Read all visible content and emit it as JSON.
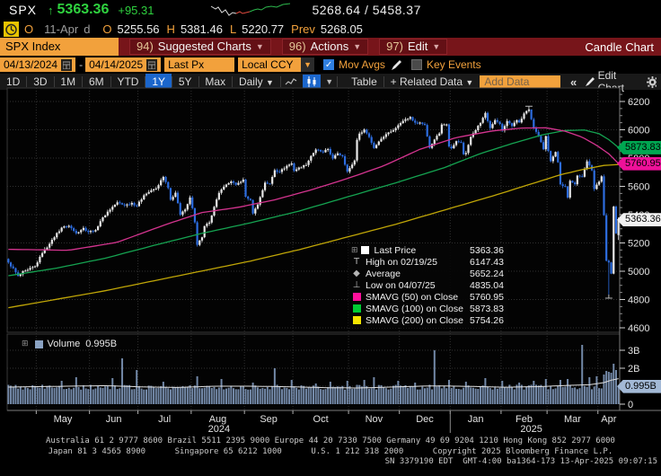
{
  "colors": {
    "up": "#e8e8e8",
    "down": "#2d6de0",
    "ma50": "#d4348f",
    "ma100": "#15a351",
    "ma200": "#c0a607",
    "volume_bar": "#7389a8",
    "volume_avg": "#e0e0e0",
    "accent_orange": "#f2a13c",
    "menu_red": "#77151a",
    "active_blue": "#1b66cc",
    "grid": "#303030",
    "axis_text": "#e4e4e4"
  },
  "quote": {
    "ticker": "SPX",
    "arrow": "↑",
    "last": "5363.36",
    "change": "+95.31",
    "range": "5268.64 / 5458.37"
  },
  "session": {
    "status": "O",
    "date": "11-Apr",
    "freq": "d",
    "open_label": "O",
    "open": "5255.56",
    "high_label": "H",
    "high": "5381.46",
    "low_label": "L",
    "low": "5220.77",
    "prev_label": "Prev",
    "prev": "5268.05"
  },
  "menubar": {
    "security": "SPX Index",
    "items": [
      {
        "num": "94)",
        "label": "Suggested Charts"
      },
      {
        "num": "96)",
        "label": "Actions"
      },
      {
        "num": "97)",
        "label": "Edit"
      }
    ],
    "right": "Candle Chart"
  },
  "controls": {
    "date_from": "04/13/2024",
    "date_to": "04/14/2025",
    "price_field": "Last Px",
    "currency": "Local CCY",
    "mov_avgs": "Mov Avgs",
    "key_events": "Key Events"
  },
  "toolbar": {
    "ranges": [
      "1D",
      "3D",
      "1M",
      "6M",
      "YTD",
      "1Y",
      "5Y",
      "Max"
    ],
    "active_range": "1Y",
    "period": "Daily",
    "table": "Table",
    "related": "+ Related Data",
    "add_data": "Add Data",
    "collapse": "«",
    "edit_chart": "Edit Chart"
  },
  "legend": {
    "rows": [
      {
        "m": "sq",
        "c": "#ffffff",
        "label": "Last Price",
        "value": "5363.36"
      },
      {
        "m": "T",
        "c": "",
        "label": "High on 02/19/25",
        "value": "6147.43"
      },
      {
        "m": "◆",
        "c": "",
        "label": "Average",
        "value": "5652.24"
      },
      {
        "m": "⊥",
        "c": "",
        "label": "Low on 04/07/25",
        "value": "4835.04"
      },
      {
        "m": "sq",
        "c": "#ff0f9b",
        "label": "SMAVG (50)  on Close",
        "value": "5760.95"
      },
      {
        "m": "sq",
        "c": "#00cc33",
        "label": "SMAVG (100)  on Close",
        "value": "5873.83"
      },
      {
        "m": "sq",
        "c": "#f5e500",
        "label": "SMAVG (200)  on Close",
        "value": "5754.26"
      }
    ]
  },
  "axis": {
    "price_ticks": [
      6200,
      6000,
      5800,
      5600,
      5400,
      5200,
      5000,
      4800,
      4600
    ],
    "badges": [
      {
        "value": "5873.83",
        "color": "#00a651",
        "price": 5873.83
      },
      {
        "value": "5760.95",
        "color": "#ee1199",
        "price": 5760.95
      },
      {
        "value": "5363.36",
        "color": "#f2f2f2",
        "price": 5363.36
      }
    ],
    "volume_ticks": [
      {
        "label": "3B",
        "v": 3
      },
      {
        "label": "2B",
        "v": 2
      },
      {
        "label": "0",
        "v": 0
      }
    ],
    "volume_badge": {
      "value": "0.995B",
      "v": 0.995,
      "color": "#a3b9d6"
    }
  },
  "volume_header": {
    "label": "Volume",
    "value": "0.995B"
  },
  "xaxis": {
    "months": [
      "May",
      "Jun",
      "Jul",
      "Aug",
      "Sep",
      "Oct",
      "Nov",
      "Dec",
      "Jan",
      "Feb",
      "Mar",
      "Apr"
    ],
    "years": [
      {
        "label": "2024",
        "day": 87
      },
      {
        "label": "2025",
        "day": 216
      }
    ]
  },
  "footer": {
    "line1": "Australia 61 2 9777 8600 Brazil 5511 2395 9000 Europe 44 20 7330 7500 Germany 49 69 9204 1210 Hong Kong 852 2977 6000",
    "line2": "Japan 81 3 4565 8900      Singapore 65 6212 1000      U.S. 1 212 318 2000      Copyright 2025 Bloomberg Finance L.P.",
    "line3": "SN 3379190 EDT  GMT-4:00 ba1364-173 13-Apr-2025 09:07:15"
  },
  "chart_data": {
    "type": "candlestick+volume",
    "title": "SPX Index 1Y Daily Candle Chart",
    "days": 253,
    "ylim": [
      4600,
      6200
    ],
    "volume_ylim_billions": [
      0,
      3
    ],
    "high": {
      "date": "02/19/25",
      "value": 6147.43,
      "day": 215
    },
    "low": {
      "date": "04/07/25",
      "value": 4835.04,
      "day": 248
    },
    "average": 5652.24,
    "last": {
      "open": 5255.56,
      "high": 5381.46,
      "low": 5220.77,
      "close": 5363.36,
      "prev": 5268.05,
      "volume_billions": 0.995
    },
    "month_starts": [
      12,
      34,
      54,
      76,
      98,
      118,
      141,
      162,
      183,
      204,
      223,
      244
    ],
    "price_anchors": [
      [
        0,
        5062
      ],
      [
        4,
        4967
      ],
      [
        8,
        5010
      ],
      [
        11,
        5035
      ],
      [
        14,
        5128
      ],
      [
        18,
        5222
      ],
      [
        22,
        5308
      ],
      [
        25,
        5321
      ],
      [
        28,
        5268
      ],
      [
        31,
        5306
      ],
      [
        33,
        5277
      ],
      [
        36,
        5291
      ],
      [
        38,
        5354
      ],
      [
        41,
        5421
      ],
      [
        45,
        5487
      ],
      [
        48,
        5465
      ],
      [
        51,
        5483
      ],
      [
        53,
        5460
      ],
      [
        56,
        5537
      ],
      [
        59,
        5572
      ],
      [
        61,
        5585
      ],
      [
        64,
        5667
      ],
      [
        66,
        5588
      ],
      [
        67,
        5505
      ],
      [
        69,
        5555
      ],
      [
        71,
        5399
      ],
      [
        73,
        5436
      ],
      [
        75,
        5522
      ],
      [
        76,
        5446
      ],
      [
        77,
        5346
      ],
      [
        78,
        5186
      ],
      [
        80,
        5240
      ],
      [
        81,
        5319
      ],
      [
        83,
        5344
      ],
      [
        85,
        5455
      ],
      [
        87,
        5554
      ],
      [
        89,
        5597
      ],
      [
        92,
        5635
      ],
      [
        94,
        5611
      ],
      [
        97,
        5648
      ],
      [
        98,
        5528
      ],
      [
        100,
        5503
      ],
      [
        101,
        5408
      ],
      [
        103,
        5471
      ],
      [
        106,
        5626
      ],
      [
        108,
        5618
      ],
      [
        110,
        5714
      ],
      [
        112,
        5702
      ],
      [
        115,
        5745
      ],
      [
        117,
        5762
      ],
      [
        118,
        5709
      ],
      [
        120,
        5733
      ],
      [
        123,
        5751
      ],
      [
        125,
        5815
      ],
      [
        127,
        5860
      ],
      [
        130,
        5841
      ],
      [
        132,
        5864
      ],
      [
        134,
        5797
      ],
      [
        136,
        5833
      ],
      [
        138,
        5813
      ],
      [
        140,
        5705
      ],
      [
        141,
        5729
      ],
      [
        143,
        5783
      ],
      [
        144,
        5929
      ],
      [
        145,
        5973
      ],
      [
        147,
        6001
      ],
      [
        149,
        5949
      ],
      [
        151,
        5871
      ],
      [
        153,
        5917
      ],
      [
        156,
        5969
      ],
      [
        158,
        5987
      ],
      [
        161,
        6032
      ],
      [
        162,
        6047
      ],
      [
        164,
        6075
      ],
      [
        166,
        6090
      ],
      [
        168,
        6050
      ],
      [
        170,
        6051
      ],
      [
        172,
        6034
      ],
      [
        174,
        5872
      ],
      [
        176,
        5931
      ],
      [
        178,
        5974
      ],
      [
        179,
        6037
      ],
      [
        181,
        6038
      ],
      [
        182,
        5882
      ],
      [
        183,
        5869
      ],
      [
        185,
        5919
      ],
      [
        187,
        5909
      ],
      [
        188,
        5827
      ],
      [
        189,
        5836
      ],
      [
        191,
        5950
      ],
      [
        193,
        5997
      ],
      [
        195,
        6049
      ],
      [
        197,
        6119
      ],
      [
        199,
        6012
      ],
      [
        201,
        6068
      ],
      [
        203,
        6041
      ],
      [
        204,
        5995
      ],
      [
        206,
        6062
      ],
      [
        208,
        6026
      ],
      [
        210,
        6068
      ],
      [
        211,
        6052
      ],
      [
        213,
        6115
      ],
      [
        215,
        6144
      ],
      [
        217,
        6013
      ],
      [
        219,
        5956
      ],
      [
        221,
        5862
      ],
      [
        222,
        5955
      ],
      [
        223,
        5850
      ],
      [
        224,
        5778
      ],
      [
        226,
        5843
      ],
      [
        227,
        5770
      ],
      [
        228,
        5615
      ],
      [
        230,
        5599
      ],
      [
        231,
        5521
      ],
      [
        232,
        5639
      ],
      [
        234,
        5615
      ],
      [
        235,
        5676
      ],
      [
        237,
        5668
      ],
      [
        239,
        5777
      ],
      [
        241,
        5713
      ],
      [
        242,
        5581
      ],
      [
        243,
        5612
      ],
      [
        244,
        5633
      ],
      [
        245,
        5671
      ],
      [
        246,
        5396
      ],
      [
        247,
        5074
      ],
      [
        248,
        5062
      ],
      [
        249,
        4983
      ],
      [
        250,
        5457
      ],
      [
        251,
        5268.05
      ],
      [
        252,
        5363.36
      ]
    ],
    "ma50_anchors": [
      [
        0,
        5155
      ],
      [
        25,
        5148
      ],
      [
        45,
        5205
      ],
      [
        65,
        5330
      ],
      [
        80,
        5415
      ],
      [
        95,
        5452
      ],
      [
        110,
        5505
      ],
      [
        125,
        5575
      ],
      [
        140,
        5655
      ],
      [
        155,
        5745
      ],
      [
        170,
        5862
      ],
      [
        185,
        5945
      ],
      [
        200,
        5992
      ],
      [
        212,
        6012
      ],
      [
        222,
        6014
      ],
      [
        230,
        5990
      ],
      [
        237,
        5948
      ],
      [
        243,
        5890
      ],
      [
        248,
        5830
      ],
      [
        252,
        5760.95
      ]
    ],
    "ma100_anchors": [
      [
        0,
        4968
      ],
      [
        20,
        5022
      ],
      [
        40,
        5092
      ],
      [
        60,
        5182
      ],
      [
        80,
        5268
      ],
      [
        100,
        5342
      ],
      [
        120,
        5425
      ],
      [
        140,
        5525
      ],
      [
        160,
        5625
      ],
      [
        180,
        5732
      ],
      [
        195,
        5832
      ],
      [
        208,
        5902
      ],
      [
        220,
        5962
      ],
      [
        230,
        5995
      ],
      [
        238,
        5998
      ],
      [
        244,
        5972
      ],
      [
        248,
        5930
      ],
      [
        252,
        5873.83
      ]
    ],
    "ma200_anchors": [
      [
        0,
        4742
      ],
      [
        20,
        4802
      ],
      [
        40,
        4862
      ],
      [
        60,
        4932
      ],
      [
        80,
        5002
      ],
      [
        100,
        5072
      ],
      [
        120,
        5152
      ],
      [
        140,
        5242
      ],
      [
        160,
        5332
      ],
      [
        180,
        5432
      ],
      [
        200,
        5532
      ],
      [
        215,
        5612
      ],
      [
        228,
        5682
      ],
      [
        238,
        5722
      ],
      [
        246,
        5748
      ],
      [
        252,
        5754.26
      ]
    ],
    "vol_avg_anchors": [
      [
        0,
        0.95
      ],
      [
        20,
        0.99
      ],
      [
        40,
        1.03
      ],
      [
        55,
        0.96
      ],
      [
        70,
        0.93
      ],
      [
        85,
        1.0
      ],
      [
        100,
        1.0
      ],
      [
        115,
        0.97
      ],
      [
        130,
        0.92
      ],
      [
        145,
        0.9
      ],
      [
        160,
        0.96
      ],
      [
        175,
        1.02
      ],
      [
        190,
        0.99
      ],
      [
        205,
        0.94
      ],
      [
        220,
        0.98
      ],
      [
        232,
        1.05
      ],
      [
        240,
        1.08
      ],
      [
        246,
        1.2
      ],
      [
        250,
        1.38
      ],
      [
        252,
        1.42
      ]
    ],
    "volume_spikes": [
      [
        22,
        1.3
      ],
      [
        28,
        1.5
      ],
      [
        43,
        1.45
      ],
      [
        47,
        2.55
      ],
      [
        53,
        1.9
      ],
      [
        64,
        1.25
      ],
      [
        78,
        1.55
      ],
      [
        88,
        1.4
      ],
      [
        101,
        1.2
      ],
      [
        110,
        2.0
      ],
      [
        117,
        1.35
      ],
      [
        127,
        1.15
      ],
      [
        133,
        1.25
      ],
      [
        140,
        1.3
      ],
      [
        147,
        1.35
      ],
      [
        151,
        1.5
      ],
      [
        161,
        1.3
      ],
      [
        168,
        1.2
      ],
      [
        176,
        3.0
      ],
      [
        182,
        1.35
      ],
      [
        189,
        1.25
      ],
      [
        197,
        1.45
      ],
      [
        204,
        1.3
      ],
      [
        211,
        1.2
      ],
      [
        217,
        1.3
      ],
      [
        222,
        1.4
      ],
      [
        228,
        1.35
      ],
      [
        231,
        1.4
      ],
      [
        237,
        3.3
      ],
      [
        240,
        1.5
      ],
      [
        243,
        1.55
      ],
      [
        246,
        1.65
      ],
      [
        247,
        1.85
      ],
      [
        248,
        1.8
      ],
      [
        249,
        1.75
      ],
      [
        250,
        2.25
      ],
      [
        251,
        1.9
      ],
      [
        252,
        0.995
      ]
    ]
  }
}
